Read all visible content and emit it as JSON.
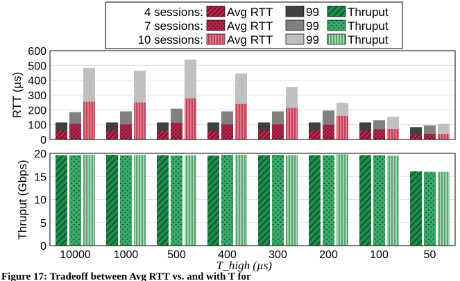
{
  "caption": "Figure 17: Tradeoff between Avg RTT vs. and with T for",
  "legend": {
    "rows": [
      {
        "label": "4 sessions:",
        "entries": [
          "Avg RTT",
          "99",
          "Thruput"
        ]
      },
      {
        "label": "7 sessions:",
        "entries": [
          "Avg RTT",
          "99",
          "Thruput"
        ]
      },
      {
        "label": "10 sessions:",
        "entries": [
          "Avg RTT",
          "99",
          "Thruput"
        ]
      }
    ]
  },
  "colors": {
    "rtt_fill": "#b0264a",
    "rtt_hatch": "#5a0a1f",
    "rtt_light": "#ec7588",
    "p99": [
      "#404040",
      "#808080",
      "#c0c0c0"
    ],
    "thru": "#1e8b4b",
    "thru_hatch": "#073f1e",
    "thru_light": "#9fd8b0"
  },
  "chart_data": [
    {
      "type": "bar",
      "ylabel": "RTT (µs)",
      "ylim": [
        0,
        600
      ],
      "yticks": [
        "0",
        "100",
        "200",
        "300",
        "400",
        "500",
        "600"
      ],
      "grid": true,
      "categories": [
        "10000",
        "1000",
        "500",
        "400",
        "300",
        "200",
        "100",
        "50"
      ],
      "series": [
        {
          "name": "4 sessions: Avg RTT",
          "values": [
            60,
            60,
            60,
            60,
            60,
            60,
            60,
            33
          ]
        },
        {
          "name": "4 sessions: 99",
          "values": [
            115,
            115,
            115,
            115,
            115,
            115,
            115,
            83
          ]
        },
        {
          "name": "7 sessions: Avg RTT",
          "values": [
            105,
            102,
            113,
            102,
            102,
            100,
            68,
            37
          ]
        },
        {
          "name": "7 sessions: 99",
          "values": [
            185,
            190,
            208,
            190,
            190,
            195,
            130,
            95
          ]
        },
        {
          "name": "10 sessions: Avg RTT",
          "values": [
            255,
            250,
            278,
            240,
            213,
            160,
            70,
            37
          ]
        },
        {
          "name": "10 sessions: 99",
          "values": [
            483,
            465,
            540,
            445,
            355,
            248,
            153,
            105
          ]
        }
      ]
    },
    {
      "type": "bar",
      "ylabel": "Thruput (Gbps)",
      "xlabel": "T_high (µs)",
      "ylim": [
        0,
        20
      ],
      "yticks": [
        "0",
        "5",
        "10",
        "15",
        "20"
      ],
      "grid": true,
      "categories": [
        "10000",
        "1000",
        "500",
        "400",
        "300",
        "200",
        "100",
        "50"
      ],
      "series": [
        {
          "name": "4 sessions: Thruput",
          "values": [
            19.6,
            19.7,
            19.6,
            19.5,
            19.6,
            19.6,
            19.6,
            16.1
          ]
        },
        {
          "name": "7 sessions: Thruput",
          "values": [
            19.6,
            19.6,
            19.5,
            19.7,
            19.7,
            19.6,
            19.6,
            16.0
          ]
        },
        {
          "name": "10 sessions: Thruput",
          "values": [
            19.7,
            19.7,
            19.6,
            19.7,
            19.6,
            19.8,
            19.5,
            16.0
          ]
        }
      ]
    }
  ]
}
